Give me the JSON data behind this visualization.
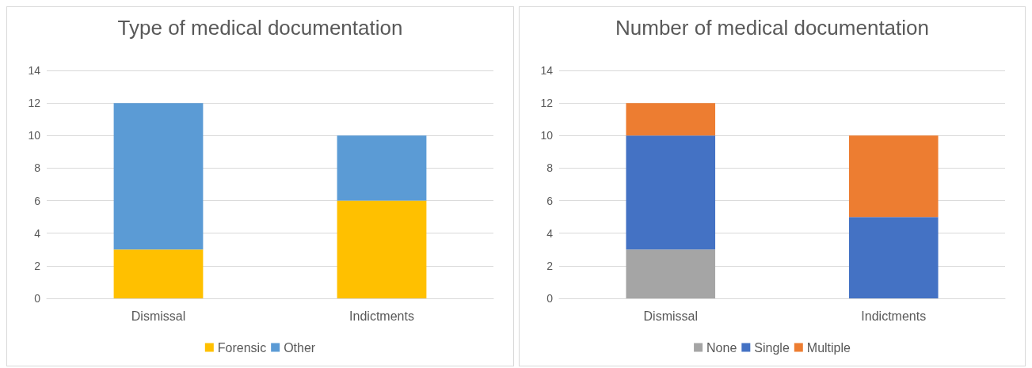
{
  "chart_data": [
    {
      "type": "bar",
      "title": "Type of medical documentation",
      "categories": [
        "Dismissal",
        "Indictments"
      ],
      "stacked": true,
      "ylim": [
        0,
        14
      ],
      "yticks": [
        0,
        2,
        4,
        6,
        8,
        10,
        12,
        14
      ],
      "grid": "y",
      "legend": "bottom",
      "series": [
        {
          "name": "Forensic",
          "color": "#ffc000",
          "values": [
            3,
            6
          ]
        },
        {
          "name": "Other",
          "color": "#5b9bd5",
          "values": [
            9,
            4
          ]
        }
      ]
    },
    {
      "type": "bar",
      "title": "Number of medical documentation",
      "categories": [
        "Dismissal",
        "Indictments"
      ],
      "stacked": true,
      "ylim": [
        0,
        14
      ],
      "yticks": [
        0,
        2,
        4,
        6,
        8,
        10,
        12,
        14
      ],
      "grid": "y",
      "legend": "bottom",
      "series": [
        {
          "name": "None",
          "color": "#a5a5a5",
          "values": [
            3,
            0
          ]
        },
        {
          "name": "Single",
          "color": "#4472c4",
          "values": [
            7,
            5
          ]
        },
        {
          "name": "Multiple",
          "color": "#ed7d31",
          "values": [
            2,
            5
          ]
        }
      ]
    }
  ]
}
